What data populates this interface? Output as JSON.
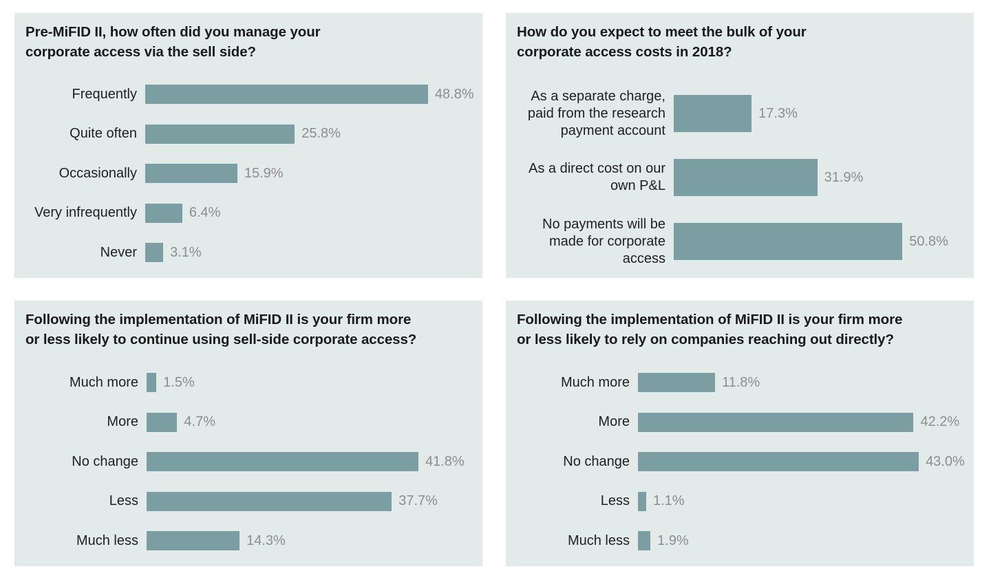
{
  "colors": {
    "panel_bg": "#e3eaea",
    "bar": "#7b9ea2",
    "value_text": "#8d8d8d",
    "label_text": "#1f1f1f"
  },
  "chart_data": [
    {
      "type": "bar",
      "orientation": "horizontal",
      "title": "Pre-MiFID II, how often did you manage your\ncorporate access via the sell side?",
      "categories": [
        "Frequently",
        "Quite often",
        "Occasionally",
        "Very infrequently",
        "Never"
      ],
      "values": [
        48.8,
        25.8,
        15.9,
        6.4,
        3.1
      ],
      "value_labels": [
        "48.8%",
        "25.8%",
        "15.9%",
        "6.4%",
        "3.1%"
      ],
      "xlabel": "",
      "ylabel": "",
      "unit": "%",
      "grid": false
    },
    {
      "type": "bar",
      "orientation": "horizontal",
      "title": "How do you expect to meet the bulk of your\ncorporate access costs in 2018?",
      "categories": [
        "As a separate charge,\npaid from the research\npayment account",
        "As a direct cost on our\nown P&L",
        "No payments will be\nmade for corporate\naccess"
      ],
      "values": [
        17.3,
        31.9,
        50.8
      ],
      "value_labels": [
        "17.3%",
        "31.9%",
        "50.8%"
      ],
      "xlabel": "",
      "ylabel": "",
      "unit": "%",
      "grid": false
    },
    {
      "type": "bar",
      "orientation": "horizontal",
      "title": "Following the implementation of MiFID II is your firm more\nor less likely to continue using sell-side corporate access?",
      "categories": [
        "Much more",
        "More",
        "No change",
        "Less",
        "Much less"
      ],
      "values": [
        1.5,
        4.7,
        41.8,
        37.7,
        14.3
      ],
      "value_labels": [
        "1.5%",
        "4.7%",
        "41.8%",
        "37.7%",
        "14.3%"
      ],
      "xlabel": "",
      "ylabel": "",
      "unit": "%",
      "grid": false
    },
    {
      "type": "bar",
      "orientation": "horizontal",
      "title": "Following the implementation of MiFID II is your firm more\nor less likely to rely on companies reaching out directly?",
      "categories": [
        "Much more",
        "More",
        "No change",
        "Less",
        "Much less"
      ],
      "values": [
        11.8,
        42.2,
        43.0,
        1.1,
        1.9
      ],
      "value_labels": [
        "11.8%",
        "42.2%",
        "43.0%",
        "1.1%",
        "1.9%"
      ],
      "xlabel": "",
      "ylabel": "",
      "unit": "%",
      "grid": false
    }
  ]
}
